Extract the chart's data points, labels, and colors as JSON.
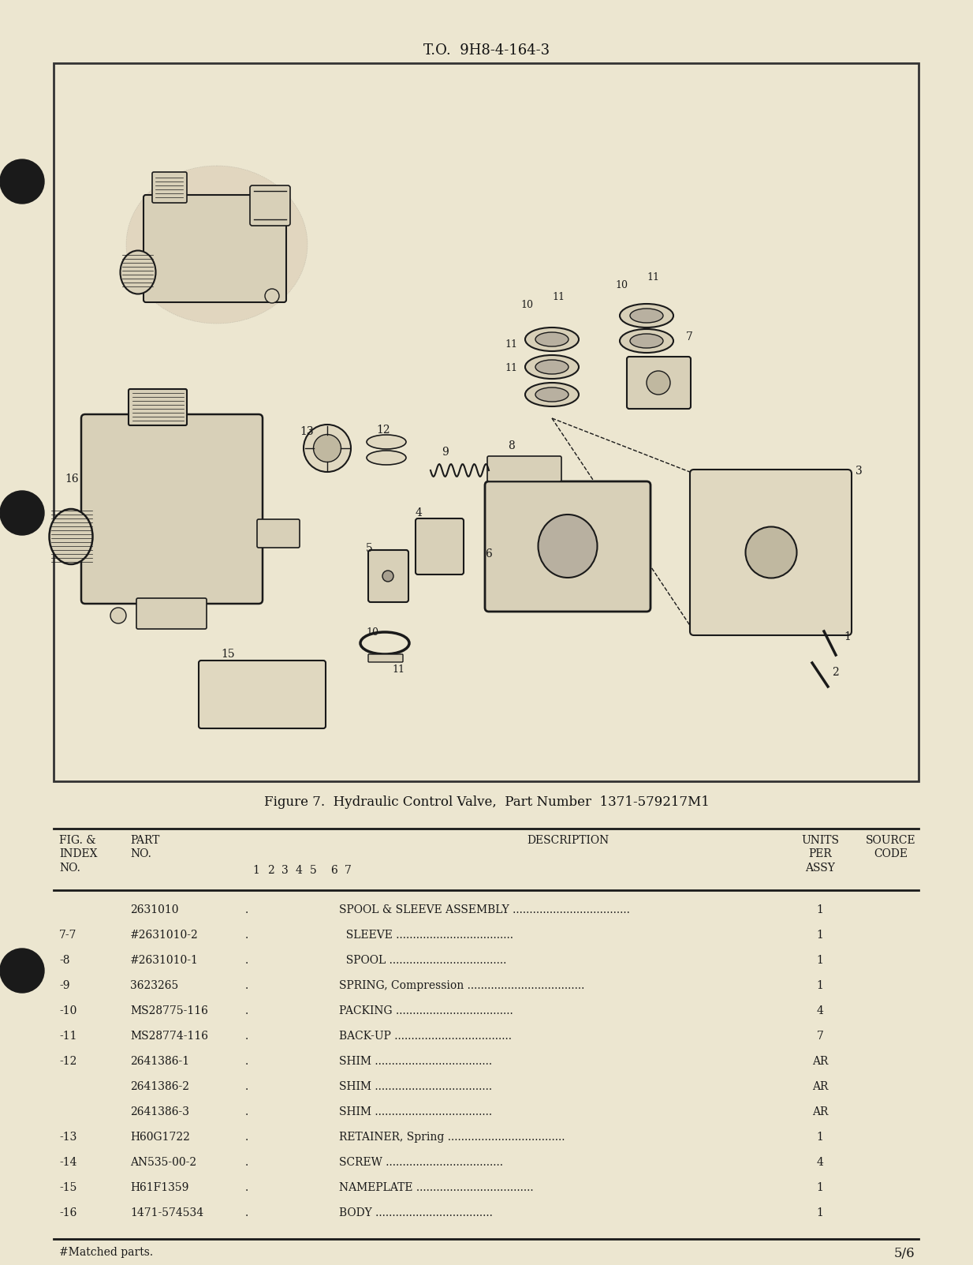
{
  "page_bg": "#e8e2cc",
  "header_text": "T.O.  9H8-4-164-3",
  "figure_caption": "Figure 7.  Hydraulic Control Valve,  Part Number  1371-579217M1",
  "table_rows": [
    [
      "",
      "2631010",
      "SPOOL & SLEEVE ASSEMBLY",
      "1"
    ],
    [
      "7-7",
      "#2631010-2",
      "  SLEEVE",
      "1"
    ],
    [
      "-8",
      "#2631010-1",
      "  SPOOL",
      "1"
    ],
    [
      "-9",
      "3623265",
      "SPRING, Compression",
      "1"
    ],
    [
      "-10",
      "MS28775-116",
      "PACKING",
      "4"
    ],
    [
      "-11",
      "MS28774-116",
      "BACK-UP",
      "7"
    ],
    [
      "-12",
      "2641386-1",
      "SHIM",
      "AR"
    ],
    [
      "",
      "2641386-2",
      "SHIM",
      "AR"
    ],
    [
      "",
      "2641386-3",
      "SHIM",
      "AR"
    ],
    [
      "-13",
      "H60G1722",
      "RETAINER, Spring",
      "1"
    ],
    [
      "-14",
      "AN535-00-2",
      "SCREW",
      "4"
    ],
    [
      "-15",
      "H61F1359",
      "NAMEPLATE",
      "1"
    ],
    [
      "-16",
      "1471-574534",
      "BODY",
      "1"
    ]
  ],
  "footnote": "#Matched parts.",
  "page_num": "5/6"
}
